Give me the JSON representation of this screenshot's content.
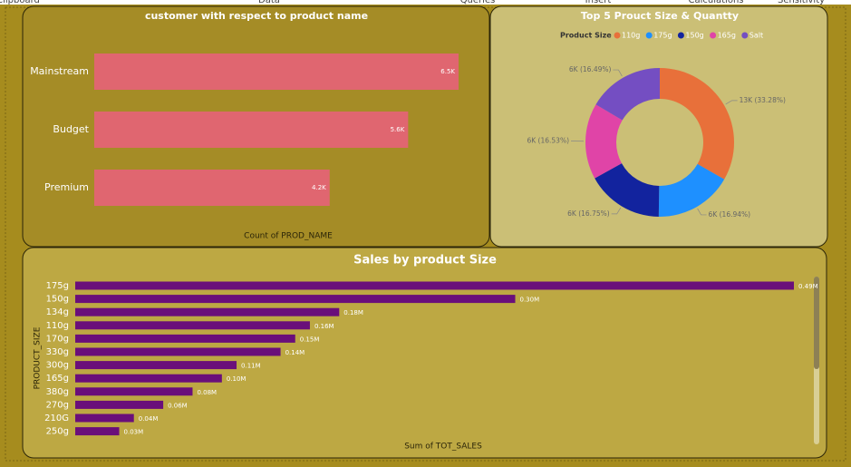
{
  "ribbon": {
    "tabs": [
      "Clipboard",
      "Data",
      "Queries",
      "Insert",
      "Calculations",
      "Sensitivity"
    ]
  },
  "chart_data": [
    {
      "type": "bar",
      "title": "customer with respect to product name",
      "xlabel": "Count of PROD_NAME",
      "categories": [
        "Mainstream",
        "Budget",
        "Premium"
      ],
      "values": [
        6500,
        5600,
        4200
      ],
      "value_labels": [
        "6.5K",
        "5.6K",
        "4.2K"
      ],
      "color": "#e06670"
    },
    {
      "type": "donut",
      "title": "Top 5 Prouct Size & Quantty",
      "legend_title": "Product Size",
      "categories": [
        "110g",
        "175g",
        "150g",
        "165g",
        "Salt"
      ],
      "values": [
        33.28,
        16.94,
        16.75,
        16.53,
        16.49
      ],
      "value_labels": [
        "13K (33.28%)",
        "6K (16.94%)",
        "6K (16.75%)",
        "6K (16.53%)",
        "6K (16.49%)"
      ],
      "colors": [
        "#e8703a",
        "#1e90ff",
        "#12239e",
        "#e044a7",
        "#744ec2"
      ]
    },
    {
      "type": "bar",
      "title": "Sales by product Size",
      "xlabel": "Sum of TOT_SALES",
      "ylabel": "PRODUCT_SIZE",
      "categories": [
        "175g",
        "150g",
        "134g",
        "110g",
        "170g",
        "330g",
        "300g",
        "165g",
        "380g",
        "270g",
        "210G",
        "250g"
      ],
      "values": [
        0.49,
        0.3,
        0.18,
        0.16,
        0.15,
        0.14,
        0.11,
        0.1,
        0.08,
        0.06,
        0.04,
        0.03
      ],
      "value_labels": [
        "0.49M",
        "0.30M",
        "0.18M",
        "0.16M",
        "0.15M",
        "0.14M",
        "0.11M",
        "0.10M",
        "0.08M",
        "0.06M",
        "0.04M",
        "0.03M"
      ],
      "color": "#6a0f7a"
    }
  ]
}
